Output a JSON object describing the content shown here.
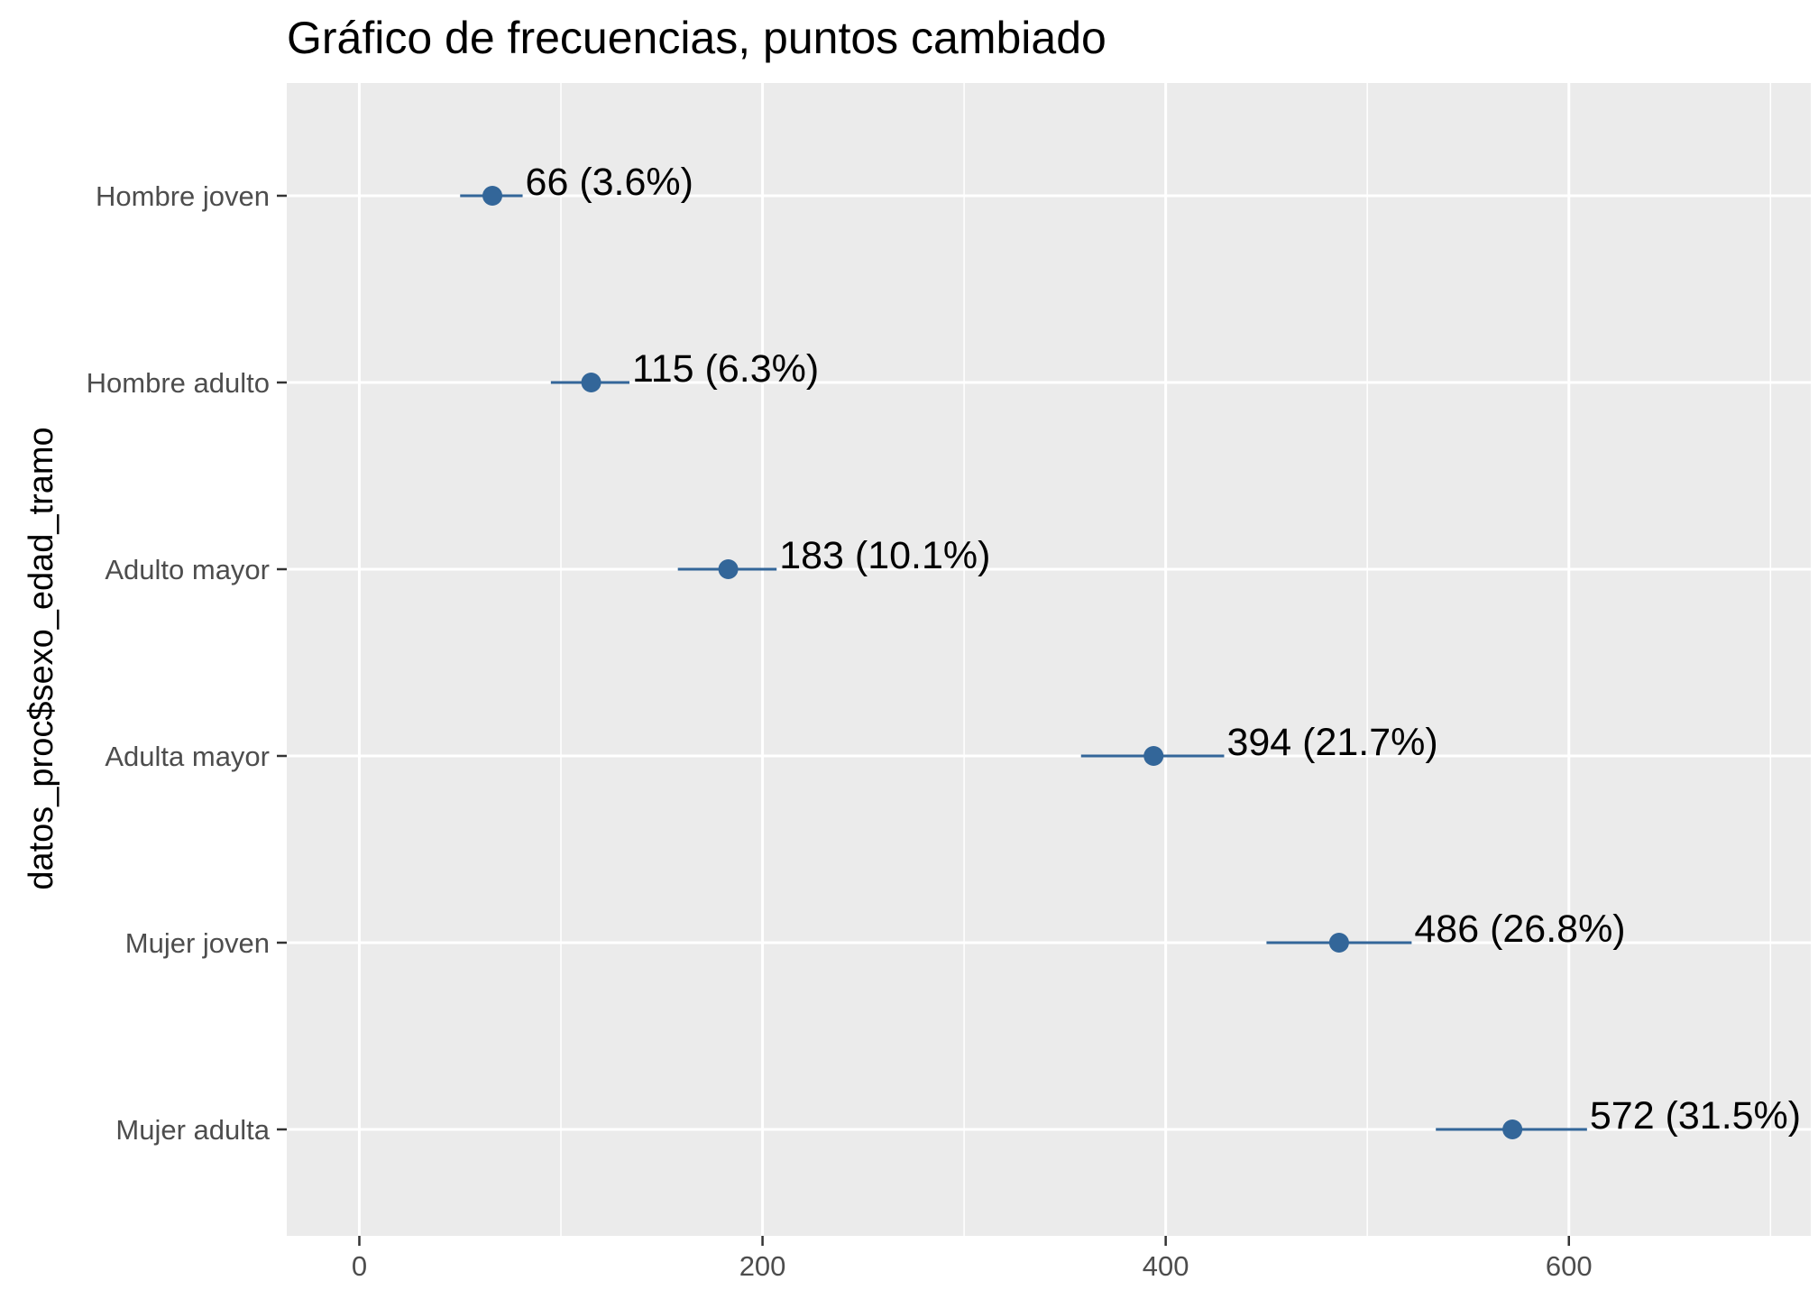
{
  "chart_data": {
    "type": "dot",
    "title": "Gráfico de frecuencias, puntos cambiado",
    "xlabel": "",
    "ylabel": "datos_proc$sexo_edad_tramo",
    "xlim": [
      -36,
      720
    ],
    "x_ticks": [
      "0",
      "200",
      "400",
      "600"
    ],
    "x_tick_values": [
      0,
      200,
      400,
      600
    ],
    "x_minor_values": [
      100,
      300,
      500,
      700
    ],
    "grid": true,
    "point_color": "#336699",
    "panel_color": "#ebebeb",
    "categories": [
      "Hombre joven",
      "Hombre adulto",
      "Adulto mayor",
      "Adulta mayor",
      "Mujer joven",
      "Mujer adulta"
    ],
    "values": [
      66,
      115,
      183,
      394,
      486,
      572
    ],
    "ci_low": [
      50,
      95,
      158,
      358,
      450,
      534
    ],
    "ci_high": [
      81,
      134,
      207,
      429,
      522,
      609
    ],
    "labels": [
      "66 (3.6%)",
      "115 (6.3%)",
      "183 (10.1%)",
      "394 (21.7%)",
      "486 (26.8%)",
      "572 (31.5%)"
    ]
  }
}
